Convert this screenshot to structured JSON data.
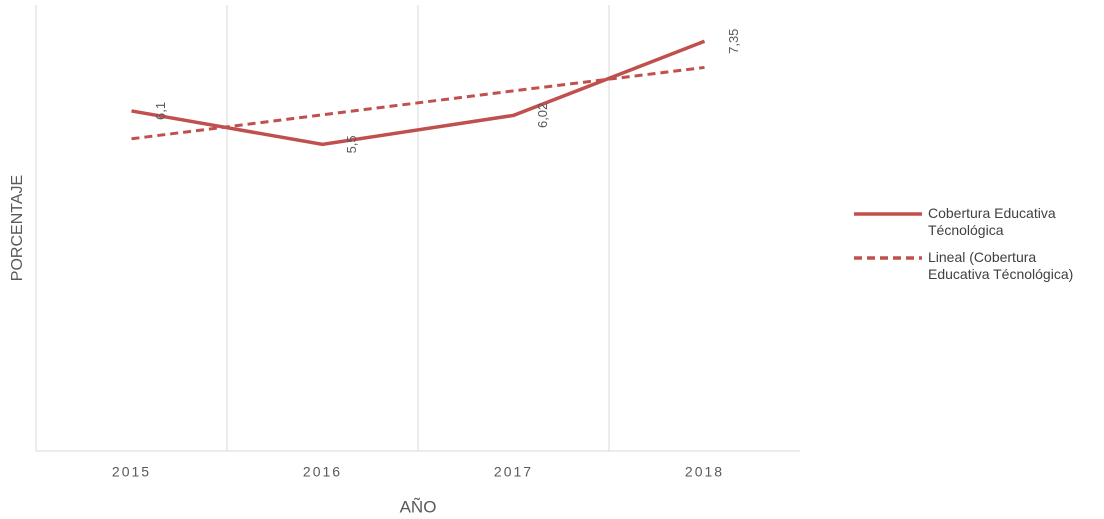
{
  "chart_data": {
    "type": "line",
    "categories": [
      "2015",
      "2016",
      "2017",
      "2018"
    ],
    "x_label": "AÑO",
    "y_label": "PORCENTAJE",
    "ylim": [
      0,
      8
    ],
    "series": [
      {
        "name": "Cobertura Educativa Técnológica",
        "color": "#c0504d",
        "dash": "solid",
        "values": [
          6.1,
          5.5,
          6.02,
          7.35
        ],
        "value_labels": [
          "6,1",
          "5,5",
          "6,02",
          "7,35"
        ]
      },
      {
        "name": "Lineal (Cobertura Educativa Técnológica)",
        "color": "#c0504d",
        "dash": "dashed",
        "values": [
          5.6,
          6.03,
          6.46,
          6.88
        ]
      }
    ],
    "legend": "right"
  }
}
